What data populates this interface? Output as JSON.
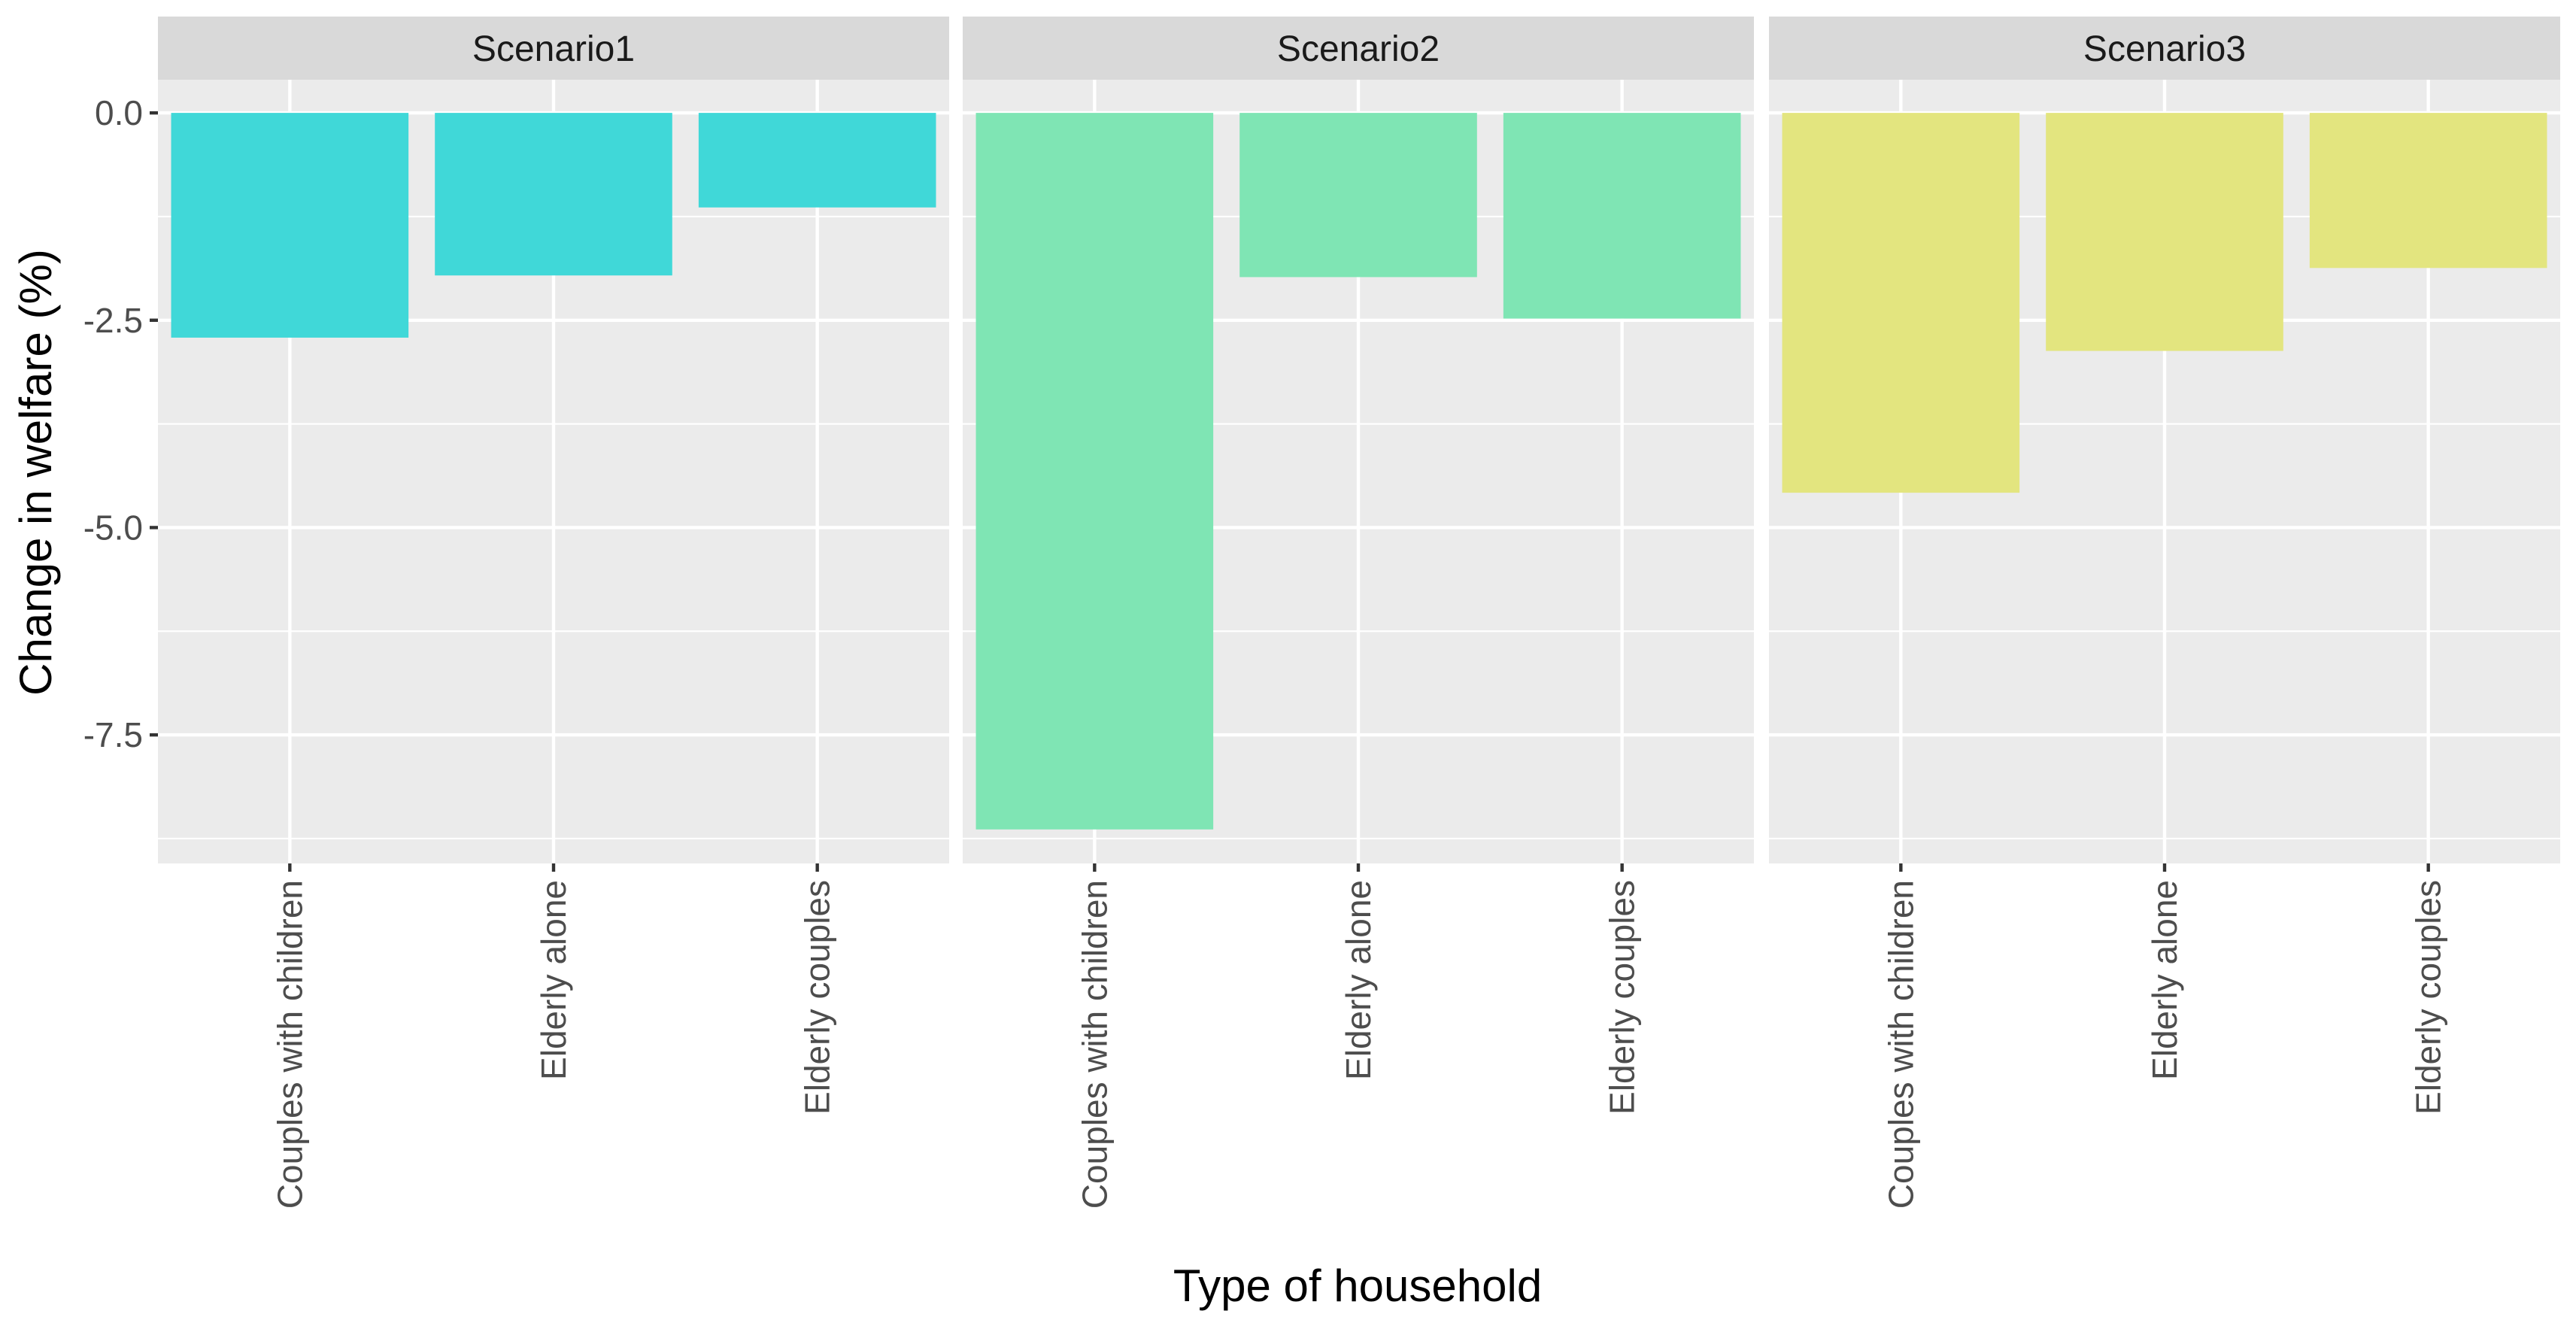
{
  "chart_data": {
    "type": "bar",
    "xlabel": "Type of household",
    "ylabel": "Change in welfare (%)",
    "categories": [
      "Couples with children",
      "Elderly alone",
      "Elderly couples"
    ],
    "ylim": [
      -9.05,
      0.4
    ],
    "y_ticks": [
      0.0,
      -2.5,
      -5.0,
      -7.5
    ],
    "y_tick_labels": [
      "0.0",
      "-2.5",
      "-5.0",
      "-7.5"
    ],
    "grid": true,
    "legend": "none",
    "panels": [
      {
        "name": "Scenario1",
        "color": "#40D8D8",
        "values": [
          -2.71,
          -1.96,
          -1.14
        ]
      },
      {
        "name": "Scenario2",
        "color": "#7FE5B4",
        "values": [
          -8.64,
          -1.98,
          -2.48
        ]
      },
      {
        "name": "Scenario3",
        "color": "#E3E57F",
        "values": [
          -4.58,
          -2.87,
          -1.87
        ]
      }
    ]
  }
}
